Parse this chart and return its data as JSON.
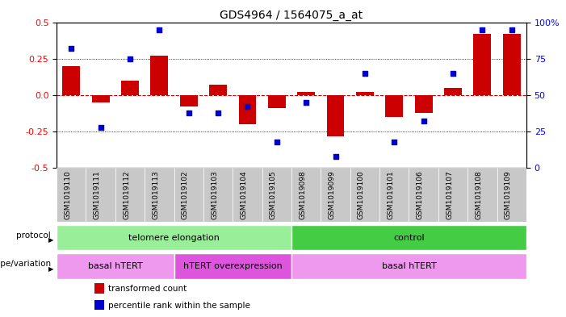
{
  "title": "GDS4964 / 1564075_a_at",
  "samples": [
    "GSM1019110",
    "GSM1019111",
    "GSM1019112",
    "GSM1019113",
    "GSM1019102",
    "GSM1019103",
    "GSM1019104",
    "GSM1019105",
    "GSM1019098",
    "GSM1019099",
    "GSM1019100",
    "GSM1019101",
    "GSM1019106",
    "GSM1019107",
    "GSM1019108",
    "GSM1019109"
  ],
  "transformed_count": [
    0.2,
    -0.05,
    0.1,
    0.27,
    -0.08,
    0.07,
    -0.2,
    -0.09,
    0.02,
    -0.28,
    0.02,
    -0.15,
    -0.12,
    0.05,
    0.42,
    0.42
  ],
  "percentile_rank": [
    82,
    28,
    75,
    95,
    38,
    38,
    42,
    18,
    45,
    8,
    65,
    18,
    32,
    65,
    95,
    95
  ],
  "ylim": [
    -0.5,
    0.5
  ],
  "yticks_left": [
    -0.5,
    -0.25,
    0.0,
    0.25,
    0.5
  ],
  "yticks_right": [
    0,
    25,
    50,
    75,
    100
  ],
  "bar_color": "#cc0000",
  "dot_color": "#0000cc",
  "protocol_groups": [
    {
      "label": "telomere elongation",
      "start": 0,
      "end": 8,
      "color": "#99ee99"
    },
    {
      "label": "control",
      "start": 8,
      "end": 16,
      "color": "#44cc44"
    }
  ],
  "genotype_groups": [
    {
      "label": "basal hTERT",
      "start": 0,
      "end": 4,
      "color": "#ee99ee"
    },
    {
      "label": "hTERT overexpression",
      "start": 4,
      "end": 8,
      "color": "#dd55dd"
    },
    {
      "label": "basal hTERT",
      "start": 8,
      "end": 16,
      "color": "#ee99ee"
    }
  ],
  "legend_items": [
    {
      "color": "#cc0000",
      "label": "transformed count"
    },
    {
      "color": "#0000cc",
      "label": "percentile rank within the sample"
    }
  ],
  "sample_bg_color": "#c8c8c8",
  "title_fontsize": 10,
  "tick_fontsize": 6.5
}
